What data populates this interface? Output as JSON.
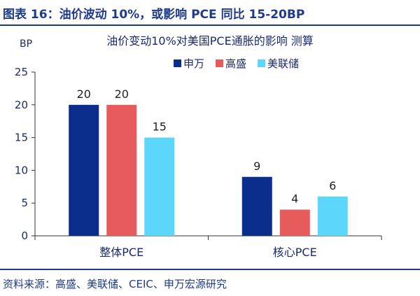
{
  "header": {
    "title": "图表 16：油价波动 10%，或影响 PCE 同比 15-20BP"
  },
  "chart_data": {
    "type": "bar",
    "title": "油价变动10%对美国PCE通胀的影响 测算",
    "ylabel": "BP",
    "xlabel": "",
    "ylim": [
      0,
      25
    ],
    "yticks": [
      0,
      5,
      10,
      15,
      20,
      25
    ],
    "grid": false,
    "legend_position": "top-right",
    "categories": [
      "整体PCE",
      "核心PCE"
    ],
    "series": [
      {
        "name": "申万",
        "color": "#0b2d8c",
        "values": [
          20,
          9
        ]
      },
      {
        "name": "高盛",
        "color": "#e85b5d",
        "values": [
          20,
          4
        ]
      },
      {
        "name": "美联储",
        "color": "#5dd6fb",
        "values": [
          15,
          6
        ]
      }
    ]
  },
  "footer": {
    "source": "资料来源：高盛、美联储、CEIC、申万宏源研究"
  }
}
